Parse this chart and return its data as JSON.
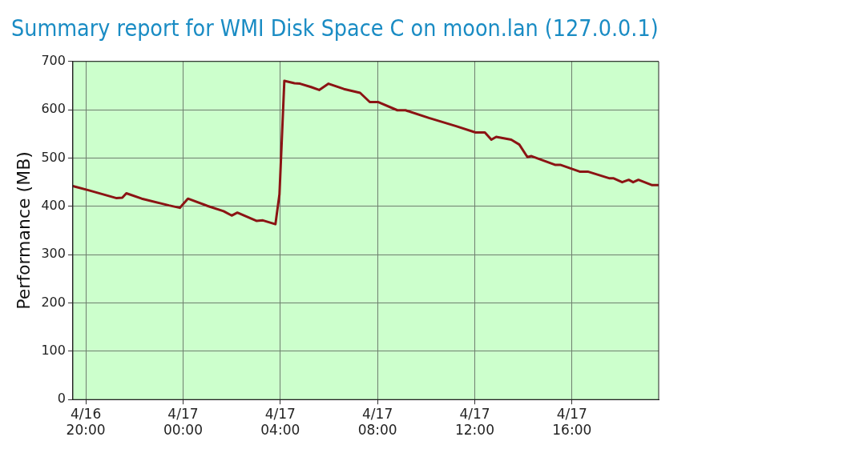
{
  "chart_data": {
    "type": "line",
    "title": "Summary report for WMI Disk Space C on moon.lan (127.0.0.1)",
    "ylabel": "Performance (MB)",
    "xlim": [
      "--04-16T19:28",
      "--04-17T19:34"
    ],
    "xticks": [
      {
        "value": "--04-16T20:00",
        "label": "4/16\n20:00"
      },
      {
        "value": "--04-17T00:00",
        "label": "4/17\n00:00"
      },
      {
        "value": "--04-17T04:00",
        "label": "4/17\n04:00"
      },
      {
        "value": "--04-17T08:00",
        "label": "4/17\n08:00"
      },
      {
        "value": "--04-17T12:00",
        "label": "4/17\n12:00"
      },
      {
        "value": "--04-17T16:00",
        "label": "4/17\n16:00"
      }
    ],
    "ylim": [
      0,
      700
    ],
    "yticks": [
      0,
      100,
      200,
      300,
      400,
      500,
      600,
      700
    ],
    "grid": true,
    "marker": "none",
    "line_style": "solid",
    "series": [
      {
        "color": "#8b1414",
        "x": [
          "--04-16T19:28",
          "--04-16T20:08",
          "--04-16T21:16",
          "--04-16T21:30",
          "--04-16T21:40",
          "--04-16T22:18",
          "--04-16T23:25",
          "--04-16T23:52",
          "--04-17T00:12",
          "--04-17T01:00",
          "--04-17T01:40",
          "--04-17T02:00",
          "--04-17T02:14",
          "--04-17T03:01",
          "--04-17T03:17",
          "--04-17T03:48",
          "--04-17T03:58",
          "--04-17T04:10",
          "--04-17T04:35",
          "--04-17T04:49",
          "--04-17T05:16",
          "--04-17T05:36",
          "--04-17T05:59",
          "--04-17T06:37",
          "--04-17T07:17",
          "--04-17T07:41",
          "--04-17T08:01",
          "--04-17T08:49",
          "--04-17T09:09",
          "--04-17T10:07",
          "--04-17T11:14",
          "--04-17T12:02",
          "--04-17T12:25",
          "--04-17T12:41",
          "--04-17T12:53",
          "--04-17T13:30",
          "--04-17T13:50",
          "--04-17T14:10",
          "--04-17T14:20",
          "--04-17T15:18",
          "--04-17T15:31",
          "--04-17T16:19",
          "--04-17T16:39",
          "--04-17T17:33",
          "--04-17T17:43",
          "--04-17T18:04",
          "--04-17T18:20",
          "--04-17T18:31",
          "--04-17T18:44",
          "--04-17T19:18",
          "--04-17T19:32"
        ],
        "values": [
          442,
          433,
          417,
          418,
          427,
          416,
          402,
          397,
          416,
          401,
          390,
          381,
          387,
          370,
          371,
          363,
          425,
          660,
          655,
          654,
          647,
          641,
          654,
          643,
          635,
          616,
          616,
          599,
          599,
          583,
          566,
          553,
          553,
          538,
          544,
          538,
          528,
          502,
          504,
          486,
          486,
          472,
          472,
          458,
          458,
          450,
          455,
          450,
          455,
          444,
          444
        ]
      }
    ]
  }
}
